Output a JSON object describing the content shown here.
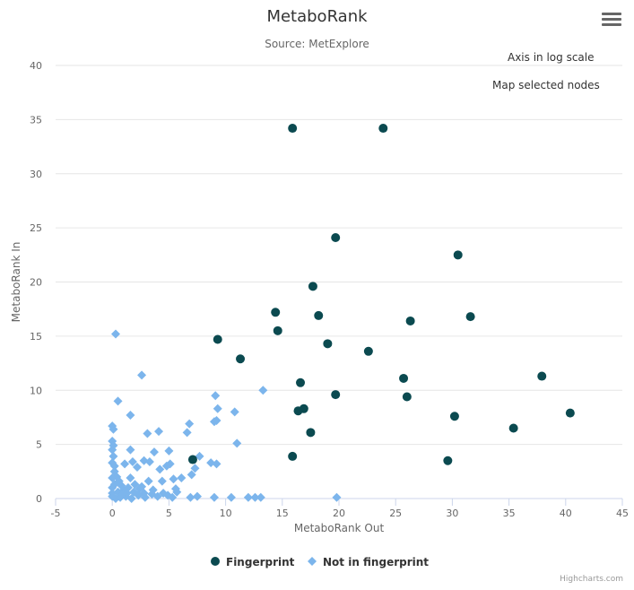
{
  "header": {
    "title": "MetaboRank",
    "subtitle": "Source: MetExplore"
  },
  "buttons": {
    "log_scale": "Axis in log scale",
    "map_nodes": "Map selected nodes"
  },
  "credits": "Highcharts.com",
  "chart_data": {
    "type": "scatter",
    "xlabel": "MetaboRank Out",
    "ylabel": "MetaboRank In",
    "xlim": [
      -5,
      45
    ],
    "ylim": [
      0,
      40
    ],
    "xticks": [
      -5,
      0,
      5,
      10,
      15,
      20,
      25,
      30,
      35,
      40,
      45
    ],
    "yticks": [
      0,
      5,
      10,
      15,
      20,
      25,
      30,
      35,
      40
    ],
    "grid": "horizontal",
    "legend_position": "bottom-center",
    "series": [
      {
        "name": "Fingerprint",
        "marker": "circle",
        "color": "#0b4a50",
        "points": [
          [
            15.9,
            34.2
          ],
          [
            23.9,
            34.2
          ],
          [
            19.7,
            24.1
          ],
          [
            30.5,
            22.5
          ],
          [
            17.7,
            19.6
          ],
          [
            14.4,
            17.2
          ],
          [
            18.2,
            16.9
          ],
          [
            31.6,
            16.8
          ],
          [
            26.3,
            16.4
          ],
          [
            14.6,
            15.5
          ],
          [
            9.3,
            14.7
          ],
          [
            19.0,
            14.3
          ],
          [
            22.6,
            13.6
          ],
          [
            11.3,
            12.9
          ],
          [
            37.9,
            11.3
          ],
          [
            25.7,
            11.1
          ],
          [
            16.6,
            10.7
          ],
          [
            19.7,
            9.6
          ],
          [
            26.0,
            9.4
          ],
          [
            16.4,
            8.1
          ],
          [
            16.9,
            8.3
          ],
          [
            40.4,
            7.9
          ],
          [
            30.2,
            7.6
          ],
          [
            35.4,
            6.5
          ],
          [
            17.5,
            6.1
          ],
          [
            15.9,
            3.9
          ],
          [
            29.6,
            3.5
          ],
          [
            7.1,
            3.6
          ]
        ]
      },
      {
        "name": "Not in fingerprint",
        "marker": "diamond",
        "color": "#7cb5ec",
        "points": [
          [
            0.3,
            15.2
          ],
          [
            2.6,
            11.4
          ],
          [
            0.5,
            9.0
          ],
          [
            1.6,
            7.7
          ],
          [
            0.0,
            6.7
          ],
          [
            0.1,
            6.4
          ],
          [
            3.1,
            6.0
          ],
          [
            4.1,
            6.2
          ],
          [
            6.8,
            6.9
          ],
          [
            0.0,
            5.3
          ],
          [
            0.1,
            4.9
          ],
          [
            0.0,
            4.5
          ],
          [
            1.6,
            4.5
          ],
          [
            3.7,
            4.3
          ],
          [
            5.0,
            4.4
          ],
          [
            0.1,
            3.9
          ],
          [
            0.0,
            3.3
          ],
          [
            0.2,
            3.0
          ],
          [
            1.1,
            3.2
          ],
          [
            1.8,
            3.4
          ],
          [
            2.2,
            2.9
          ],
          [
            2.8,
            3.5
          ],
          [
            3.3,
            3.4
          ],
          [
            4.2,
            2.7
          ],
          [
            4.8,
            3.0
          ],
          [
            5.1,
            3.2
          ],
          [
            5.4,
            1.8
          ],
          [
            6.1,
            1.9
          ],
          [
            7.0,
            2.2
          ],
          [
            7.3,
            2.8
          ],
          [
            7.7,
            3.9
          ],
          [
            8.7,
            3.3
          ],
          [
            9.2,
            3.2
          ],
          [
            6.6,
            6.1
          ],
          [
            9.0,
            7.1
          ],
          [
            9.2,
            7.2
          ],
          [
            9.3,
            8.3
          ],
          [
            9.1,
            9.5
          ],
          [
            10.8,
            8.0
          ],
          [
            11.0,
            5.1
          ],
          [
            13.3,
            10.0
          ],
          [
            0.2,
            2.5
          ],
          [
            0.4,
            2.0
          ],
          [
            0.6,
            1.6
          ],
          [
            0.8,
            1.2
          ],
          [
            1.0,
            0.8
          ],
          [
            1.3,
            0.5
          ],
          [
            1.6,
            1.9
          ],
          [
            2.0,
            1.3
          ],
          [
            2.4,
            0.9
          ],
          [
            2.8,
            0.5
          ],
          [
            3.2,
            1.6
          ],
          [
            3.6,
            0.8
          ],
          [
            4.0,
            0.2
          ],
          [
            4.5,
            0.5
          ],
          [
            4.9,
            0.3
          ],
          [
            5.3,
            0.1
          ],
          [
            5.7,
            0.6
          ],
          [
            0.0,
            1.9
          ],
          [
            0.0,
            1.0
          ],
          [
            0.0,
            0.5
          ],
          [
            0.0,
            0.2
          ],
          [
            0.3,
            0.0
          ],
          [
            0.7,
            0.1
          ],
          [
            1.2,
            0.2
          ],
          [
            1.7,
            0.0
          ],
          [
            2.3,
            0.3
          ],
          [
            2.9,
            0.1
          ],
          [
            3.5,
            0.4
          ],
          [
            0.5,
            0.6
          ],
          [
            0.9,
            0.4
          ],
          [
            1.4,
            1.0
          ],
          [
            1.9,
            0.6
          ],
          [
            2.6,
            1.1
          ],
          [
            0.2,
            1.3
          ],
          [
            6.9,
            0.1
          ],
          [
            7.5,
            0.2
          ],
          [
            9.0,
            0.1
          ],
          [
            10.5,
            0.1
          ],
          [
            12.0,
            0.1
          ],
          [
            12.6,
            0.1
          ],
          [
            13.1,
            0.1
          ],
          [
            19.8,
            0.1
          ],
          [
            5.6,
            0.9
          ],
          [
            4.4,
            1.6
          ]
        ]
      }
    ]
  }
}
